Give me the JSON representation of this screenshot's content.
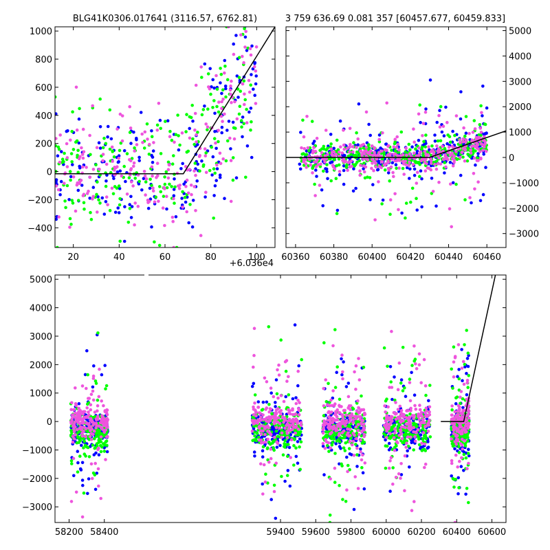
{
  "chart_data": [
    {
      "id": "top-left",
      "type": "scatter",
      "title": "BLG41K0306.017641 (3116.57, 6762.81)",
      "xlim": [
        12,
        108
      ],
      "ylim": [
        -540,
        1030
      ],
      "xticks": [
        20,
        40,
        60,
        80,
        100
      ],
      "yticks": [
        -400,
        -200,
        0,
        200,
        400,
        600,
        800,
        1000
      ],
      "yaxis_side": "left",
      "offset_label": "+6.036e4",
      "model_line": [
        [
          12,
          -15
        ],
        [
          68,
          -15
        ],
        [
          108,
          1030
        ]
      ],
      "series": [
        {
          "color": "#0000ff",
          "x_range": [
            12,
            100
          ],
          "y_center": 0,
          "y_spread": 250
        },
        {
          "color": "#00ff00",
          "x_range": [
            12,
            100
          ],
          "y_center": 0,
          "y_spread": 250
        },
        {
          "color": "#ee55dd",
          "x_range": [
            12,
            100
          ],
          "y_center": 0,
          "y_spread": 250
        }
      ]
    },
    {
      "id": "top-right",
      "type": "scatter",
      "title": "3 759 636.69 0.081 357 [60457.677, 60459.833]",
      "xlim": [
        60355,
        60470
      ],
      "ylim": [
        -3550,
        5150
      ],
      "xticks": [
        60360,
        60380,
        60400,
        60420,
        60440,
        60460
      ],
      "yticks": [
        -3000,
        -2000,
        -1000,
        0,
        1000,
        2000,
        3000,
        4000,
        5000
      ],
      "yaxis_side": "right",
      "model_line": [
        [
          60355,
          0
        ],
        [
          60430,
          0
        ],
        [
          60470,
          1050
        ]
      ],
      "series": [
        {
          "color": "#0000ff",
          "x_range": [
            60362,
            60460
          ]
        },
        {
          "color": "#00ff00",
          "x_range": [
            60362,
            60460
          ]
        },
        {
          "color": "#ee55dd",
          "x_range": [
            60362,
            60460
          ]
        }
      ]
    },
    {
      "id": "bottom",
      "type": "scatter",
      "xlim": [
        58120,
        60680
      ],
      "ylim": [
        -3550,
        5150
      ],
      "xticks": [
        58200,
        58400,
        59400,
        59600,
        59800,
        60000,
        60200,
        60400,
        60600
      ],
      "yticks": [
        -3000,
        -2000,
        -1000,
        0,
        1000,
        2000,
        3000,
        4000,
        5000
      ],
      "yaxis_side": "left",
      "seasons": [
        [
          58210,
          58420
        ],
        [
          59240,
          59520
        ],
        [
          59640,
          59880
        ],
        [
          59985,
          60250
        ],
        [
          60370,
          60470
        ]
      ],
      "model_line": [
        [
          60310,
          0
        ],
        [
          60440,
          0
        ],
        [
          60620,
          5150
        ]
      ],
      "series": [
        {
          "color": "#0000ff"
        },
        {
          "color": "#00ff00"
        },
        {
          "color": "#ee55dd"
        }
      ]
    }
  ]
}
